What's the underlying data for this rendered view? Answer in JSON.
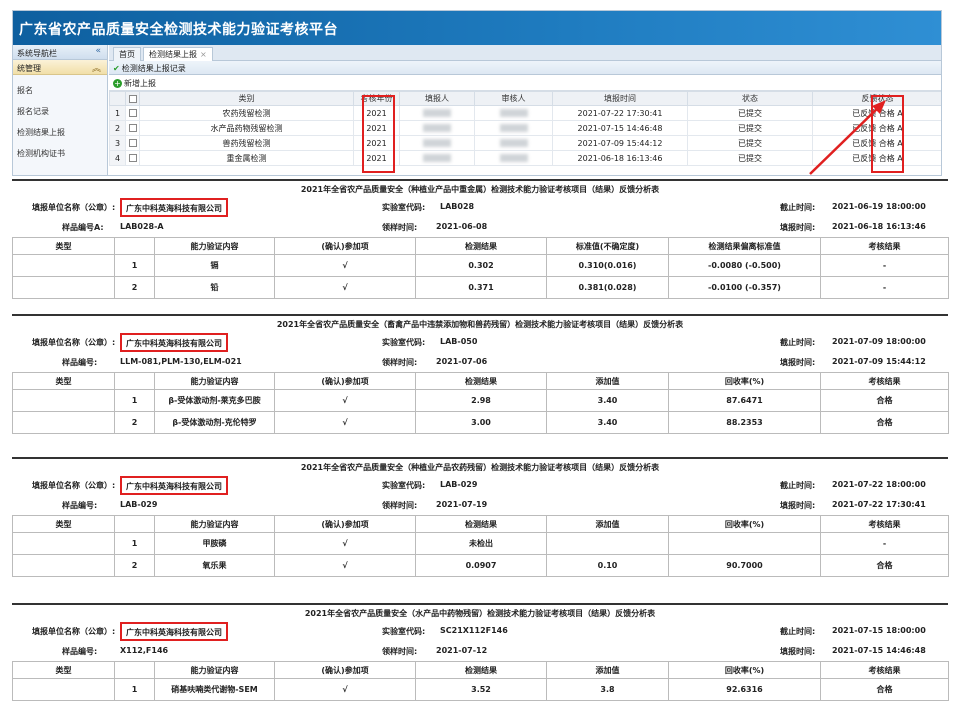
{
  "app": {
    "title": "广东省农产品质量安全检测技术能力验证考核平台",
    "sidebar": {
      "title": "系统导航栏",
      "group": "统管理",
      "items": [
        "报名",
        "报名记录",
        "检测结果上报",
        "检测机构证书"
      ]
    },
    "tabs": [
      {
        "label": "首页"
      },
      {
        "label": "检测结果上报"
      }
    ],
    "panel_title": "检测结果上报记录",
    "add_button": "新增上报",
    "grid": {
      "headers": [
        "",
        "类别",
        "考核年份",
        "填报人",
        "审核人",
        "填报时间",
        "状态",
        "反馈状态"
      ],
      "rows": [
        {
          "n": "1",
          "category": "农药残留检测",
          "year": "2021",
          "time": "2021-07-22 17:30:41",
          "status": "已提交",
          "feedback": "已反馈",
          "result": "合格 A"
        },
        {
          "n": "2",
          "category": "水产品药物残留检测",
          "year": "2021",
          "time": "2021-07-15 14:46:48",
          "status": "已提交",
          "feedback": "已反馈",
          "result": "合格 A"
        },
        {
          "n": "3",
          "category": "兽药残留检测",
          "year": "2021",
          "time": "2021-07-09 15:44:12",
          "status": "已提交",
          "feedback": "已反馈",
          "result": "合格 A"
        },
        {
          "n": "4",
          "category": "重金属检测",
          "year": "2021",
          "time": "2021-06-18 16:13:46",
          "status": "已提交",
          "feedback": "已反馈",
          "result": "合格 A"
        }
      ]
    }
  },
  "labels": {
    "unit": "填报单位名称（公章）:",
    "lab": "实验室代码:",
    "deadline": "截止时间:",
    "sample_a": "样品编号A:",
    "sample": "样品编号:",
    "receive": "领样时间:",
    "fill": "填报时间:"
  },
  "reports": [
    {
      "title": "2021年全省农产品质量安全（种植业产品中重金属）检测技术能力验证考核项目（结果）反馈分析表",
      "unit": "广东中科英海科技有限公司",
      "lab_code": "LAB028",
      "deadline": "2021-06-19 18:00:00",
      "sample_no": "LAB028-A",
      "receive_time": "2021-06-08",
      "fill_time": "2021-06-18 16:13:46",
      "headers": [
        "类型",
        "",
        "能力验证内容",
        "(确认)参加项",
        "检测结果",
        "标准值(不确定度)",
        "检测结果偏离标准值",
        "考核结果"
      ],
      "rows": [
        [
          "",
          "1",
          "镉",
          "√",
          "0.302",
          "0.310(0.016)",
          "-0.0080 (-0.500)",
          "-"
        ],
        [
          "",
          "2",
          "铅",
          "√",
          "0.371",
          "0.381(0.028)",
          "-0.0100 (-0.357)",
          "-"
        ]
      ]
    },
    {
      "title": "2021年全省农产品质量安全（畜禽产品中违禁添加物和兽药残留）检测技术能力验证考核项目（结果）反馈分析表",
      "unit": "广东中科英海科技有限公司",
      "lab_code": "LAB-050",
      "deadline": "2021-07-09 18:00:00",
      "sample_no": "LLM-081,PLM-130,ELM-021",
      "receive_time": "2021-07-06",
      "fill_time": "2021-07-09 15:44:12",
      "headers": [
        "类型",
        "",
        "能力验证内容",
        "(确认)参加项",
        "检测结果",
        "添加值",
        "回收率(%)",
        "考核结果"
      ],
      "rows": [
        [
          "",
          "1",
          "β-受体激动剂-莱克多巴胺",
          "√",
          "2.98",
          "3.40",
          "87.6471",
          "合格"
        ],
        [
          "",
          "2",
          "β-受体激动剂-克伦特罗",
          "√",
          "3.00",
          "3.40",
          "88.2353",
          "合格"
        ]
      ]
    },
    {
      "title": "2021年全省农产品质量安全（种植业产品农药残留）检测技术能力验证考核项目（结果）反馈分析表",
      "unit": "广东中科英海科技有限公司",
      "lab_code": "LAB-029",
      "deadline": "2021-07-22 18:00:00",
      "sample_no": "LAB-029",
      "receive_time": "2021-07-19",
      "fill_time": "2021-07-22 17:30:41",
      "headers": [
        "类型",
        "",
        "能力验证内容",
        "(确认)参加项",
        "检测结果",
        "添加值",
        "回收率(%)",
        "考核结果"
      ],
      "rows": [
        [
          "",
          "1",
          "甲胺磷",
          "√",
          "未检出",
          "",
          "",
          "-"
        ],
        [
          "",
          "2",
          "氧乐果",
          "√",
          "0.0907",
          "0.10",
          "90.7000",
          "合格"
        ]
      ]
    },
    {
      "title": "2021年全省农产品质量安全（水产品中药物残留）检测技术能力验证考核项目（结果）反馈分析表",
      "unit": "广东中科英海科技有限公司",
      "lab_code": "SC21X112F146",
      "deadline": "2021-07-15 18:00:00",
      "sample_no": "X112,F146",
      "receive_time": "2021-07-12",
      "fill_time": "2021-07-15 14:46:48",
      "headers": [
        "类型",
        "",
        "能力验证内容",
        "(确认)参加项",
        "检测结果",
        "添加值",
        "回收率(%)",
        "考核结果"
      ],
      "rows": [
        [
          "",
          "1",
          "硝基呋喃类代谢物-SEM",
          "√",
          "3.52",
          "3.8",
          "92.6316",
          "合格"
        ]
      ]
    }
  ]
}
